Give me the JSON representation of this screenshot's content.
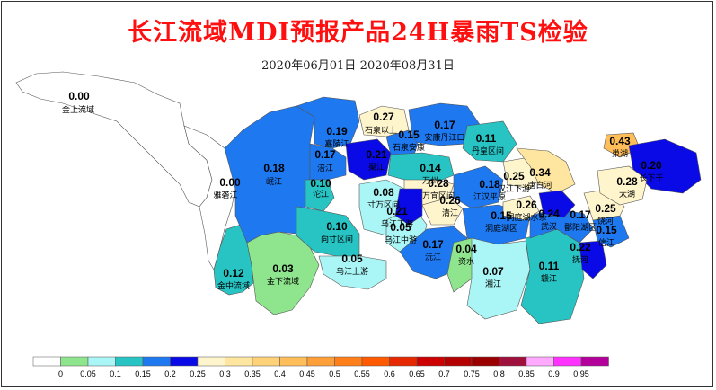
{
  "title": "长江流域MDI预报产品24H暴雨TS检验",
  "subtitle": "2020年06月01日-2020年08月31日",
  "colors": {
    "bins": [
      "#ffffff",
      "#8ee58e",
      "#aaf5f5",
      "#28c4c4",
      "#1e78f0",
      "#0a0ae6",
      "#fff5cc",
      "#ffe6a0",
      "#ffd27a",
      "#ffbe5a",
      "#ff9f3a",
      "#ff7f1a",
      "#ff5a00",
      "#e62800",
      "#cc0000",
      "#b40000",
      "#9b0000",
      "#a0103c",
      "#ffaaff",
      "#ff32ff",
      "#b4009b",
      "#6e004b"
    ]
  },
  "legend": {
    "ticks": [
      "0",
      "0.05",
      "0.1",
      "0.15",
      "0.2",
      "0.25",
      "0.3",
      "0.35",
      "0.4",
      "0.45",
      "0.5",
      "0.55",
      "0.6",
      "0.65",
      "0.7",
      "0.75",
      "0.8",
      "0.85",
      "0.9",
      "0.95"
    ]
  },
  "regions": [
    {
      "name": "金上流域",
      "value": "0.00"
    },
    {
      "name": "雅砻江",
      "value": "0.00"
    },
    {
      "name": "金中流域",
      "value": "0.12"
    },
    {
      "name": "金下流域",
      "value": "0.03"
    },
    {
      "name": "岷江",
      "value": "0.18"
    },
    {
      "name": "嘉陵江",
      "value": "0.19"
    },
    {
      "name": "涪江",
      "value": "0.17"
    },
    {
      "name": "沱江",
      "value": "0.10"
    },
    {
      "name": "向寸区间",
      "value": "0.10"
    },
    {
      "name": "乌江上游",
      "value": "0.05"
    },
    {
      "name": "石泉以上",
      "value": "0.27"
    },
    {
      "name": "安康丹江口",
      "value": "0.17"
    },
    {
      "name": "石泉安康",
      "value": "0.15"
    },
    {
      "name": "渠江",
      "value": "0.21"
    },
    {
      "name": "丹皇区间",
      "value": "0.11"
    },
    {
      "name": "万州",
      "value": "0.14"
    },
    {
      "name": "寸万区间",
      "value": "0.08"
    },
    {
      "name": "万宜区间",
      "value": "0.28"
    },
    {
      "name": "清江",
      "value": "0.26"
    },
    {
      "name": "江汉平原",
      "value": "0.18"
    },
    {
      "name": "汉江下游",
      "value": "0.25"
    },
    {
      "name": "唐白河",
      "value": "0.34"
    },
    {
      "name": "乌江中游",
      "value": "0.05"
    },
    {
      "name": "乌江下游",
      "value": "0.21"
    },
    {
      "name": "洞庭湖区",
      "value": "0.15"
    },
    {
      "name": "沅江",
      "value": "0.17"
    },
    {
      "name": "资水",
      "value": "0.04"
    },
    {
      "name": "湘江",
      "value": "0.07"
    },
    {
      "name": "赣江",
      "value": "0.11"
    },
    {
      "name": "鄱阳湖区",
      "value": "0.17"
    },
    {
      "name": "洞庭湖水系",
      "value": "0.26"
    },
    {
      "name": "武汉",
      "value": "0.24"
    },
    {
      "name": "抚河",
      "value": "0.22"
    },
    {
      "name": "信江",
      "value": "0.15"
    },
    {
      "name": "饶河",
      "value": "0.25"
    },
    {
      "name": "巢湖",
      "value": "0.43"
    },
    {
      "name": "长下干",
      "value": "0.20"
    },
    {
      "name": "太湖",
      "value": "0.28"
    }
  ]
}
